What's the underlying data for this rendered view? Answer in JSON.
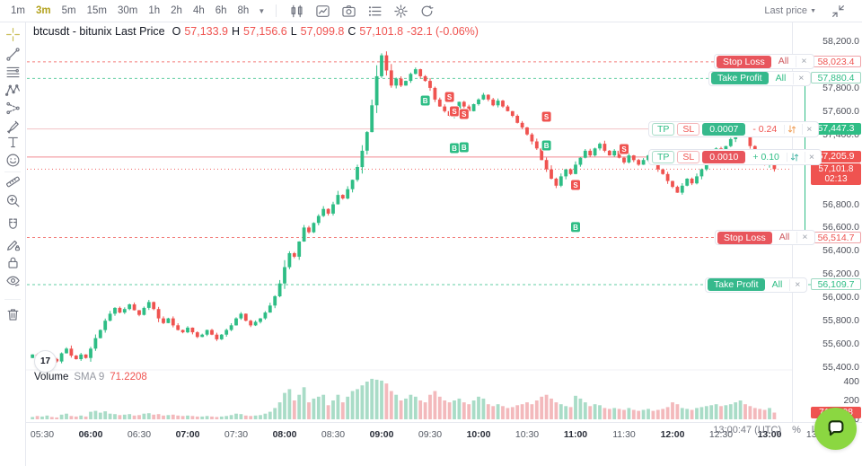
{
  "colors": {
    "up": "#2ebd85",
    "down": "#ef5350",
    "up_muted": "#a9dcc7",
    "down_muted": "#f3b9bc",
    "accent": "#b3a21e",
    "chat": "#8bd741",
    "border": "#e7e9ef"
  },
  "toolbar": {
    "timeframes": [
      "1m",
      "3m",
      "5m",
      "15m",
      "30m",
      "1h",
      "2h",
      "4h",
      "6h",
      "8h"
    ],
    "active_timeframe": "3m",
    "icons": [
      "candles",
      "indicators",
      "snapshot",
      "object-tree",
      "settings",
      "refresh"
    ],
    "last_price_selector": "Last price"
  },
  "sidebar": {
    "tools": [
      "crosshair",
      "trend-line",
      "fib-retracement",
      "xabcd-pattern",
      "forecast",
      "brush",
      "text",
      "emoji",
      "ruler",
      "zoom-in",
      "magnet",
      "edit-lock",
      "lock",
      "eye",
      "trash"
    ],
    "active_tool": "crosshair"
  },
  "legend": {
    "symbol": "btcusdt - bitunix Last Price",
    "open_label": "O",
    "open": "57,133.9",
    "high_label": "H",
    "high": "57,156.6",
    "low_label": "L",
    "low": "57,099.8",
    "close_label": "C",
    "close": "57,101.8",
    "change": "-32.1 (-0.06%)"
  },
  "volume_legend": {
    "title": "Volume",
    "ma": "SMA 9",
    "value": "71.2208"
  },
  "orders": {
    "short_stop_loss": {
      "label": "Stop Loss",
      "qty": "All",
      "close": "×",
      "price": 58023.4,
      "price_label": "58,023.4"
    },
    "long_take_profit": {
      "label": "Take Profit",
      "qty": "All",
      "close": "×",
      "price": 57880.4,
      "price_label": "57,880.4"
    },
    "long_position": {
      "tp": "TP",
      "sl": "SL",
      "qty": "0.0007",
      "pnl": "- 0.24",
      "close": "×",
      "price": 57447.3,
      "price_label": "57,447.3",
      "side": "long"
    },
    "short_position": {
      "tp": "TP",
      "sl": "SL",
      "qty": "0.0010",
      "pnl": "+ 0.10",
      "close": "×",
      "price": 57205.9,
      "price_label": "57,205.9",
      "side": "short"
    },
    "long_stop_loss": {
      "label": "Stop Loss",
      "qty": "All",
      "close": "×",
      "price": 56514.7,
      "price_label": "56,514.7"
    },
    "short_take_profit": {
      "label": "Take Profit",
      "qty": "All",
      "close": "×",
      "price": 56109.7,
      "price_label": "56,109.7"
    },
    "last_price": {
      "price": 57101.8,
      "price_label": "57,101.8",
      "countdown": "02:13"
    }
  },
  "chart_data": {
    "type": "candlestick",
    "symbol": "btcusdt",
    "exchange": "bitunix",
    "interval": "3m",
    "start_time": "05:24",
    "ylim_price": [
      55350,
      58270
    ],
    "closes": [
      55510,
      55470,
      55480,
      55500,
      55470,
      55450,
      55520,
      55560,
      55500,
      55470,
      55510,
      55480,
      55560,
      55650,
      55720,
      55800,
      55860,
      55910,
      55870,
      55900,
      55940,
      55890,
      55850,
      55910,
      55960,
      55900,
      55820,
      55780,
      55820,
      55760,
      55720,
      55700,
      55740,
      55700,
      55660,
      55680,
      55720,
      55680,
      55640,
      55680,
      55720,
      55760,
      55820,
      55860,
      55800,
      55760,
      55790,
      55820,
      55870,
      55930,
      56010,
      56120,
      56260,
      56380,
      56350,
      56480,
      56600,
      56560,
      56640,
      56700,
      56760,
      56720,
      56800,
      56880,
      56850,
      56930,
      57010,
      57120,
      57260,
      57420,
      57650,
      57900,
      58080,
      57950,
      57820,
      57880,
      57820,
      57860,
      57920,
      57960,
      57900,
      57860,
      57800,
      57700,
      57640,
      57600,
      57560,
      57620,
      57680,
      57640,
      57600,
      57660,
      57700,
      57740,
      57700,
      57650,
      57690,
      57640,
      57600,
      57560,
      57500,
      57460,
      57400,
      57340,
      57280,
      57180,
      57100,
      57020,
      56960,
      57040,
      57100,
      57060,
      57140,
      57200,
      57260,
      57220,
      57280,
      57320,
      57260,
      57220,
      57260,
      57200,
      57160,
      57220,
      57180,
      57140,
      57180,
      57220,
      57160,
      57100,
      57060,
      57000,
      56950,
      56900,
      56960,
      57020,
      56980,
      57040,
      57100,
      57160,
      57220,
      57280,
      57240,
      57300,
      57360,
      57420,
      57460,
      57380,
      57300,
      57240,
      57180,
      57140,
      57200,
      57101.8
    ],
    "volumes": [
      25,
      35,
      30,
      40,
      25,
      20,
      50,
      60,
      35,
      30,
      40,
      30,
      80,
      90,
      70,
      85,
      60,
      55,
      45,
      50,
      55,
      40,
      45,
      60,
      65,
      50,
      55,
      40,
      45,
      50,
      40,
      35,
      40,
      35,
      30,
      30,
      35,
      30,
      25,
      30,
      35,
      45,
      60,
      55,
      40,
      35,
      40,
      45,
      60,
      80,
      120,
      180,
      280,
      320,
      200,
      260,
      340,
      180,
      220,
      240,
      260,
      150,
      200,
      260,
      180,
      240,
      300,
      320,
      360,
      400,
      430,
      420,
      410,
      380,
      300,
      260,
      200,
      220,
      260,
      240,
      200,
      180,
      260,
      300,
      240,
      200,
      180,
      200,
      220,
      180,
      160,
      200,
      240,
      220,
      160,
      140,
      160,
      140,
      120,
      130,
      150,
      160,
      180,
      160,
      200,
      240,
      260,
      220,
      180,
      160,
      140,
      130,
      250,
      220,
      180,
      140,
      160,
      150,
      120,
      110,
      120,
      110,
      100,
      120,
      100,
      90,
      100,
      110,
      90,
      100,
      110,
      130,
      180,
      160,
      120,
      110,
      100,
      120,
      130,
      140,
      150,
      160,
      140,
      150,
      160,
      180,
      200,
      160,
      140,
      120,
      110,
      100,
      120,
      71
    ],
    "markers": [
      {
        "i": 81,
        "p": 57691,
        "side": "B"
      },
      {
        "i": 86,
        "p": 57722,
        "side": "S"
      },
      {
        "i": 87,
        "p": 57598,
        "side": "S"
      },
      {
        "i": 89,
        "p": 57575,
        "side": "S"
      },
      {
        "i": 87,
        "p": 57282,
        "side": "B"
      },
      {
        "i": 89,
        "p": 57290,
        "side": "B"
      },
      {
        "i": 106,
        "p": 57552,
        "side": "S"
      },
      {
        "i": 106,
        "p": 57305,
        "side": "B"
      },
      {
        "i": 112,
        "p": 56966,
        "side": "S"
      },
      {
        "i": 112,
        "p": 56604,
        "side": "B"
      },
      {
        "i": 122,
        "p": 57274,
        "side": "S"
      }
    ],
    "price_ticks": [
      {
        "v": 58200,
        "label": "58,200.0"
      },
      {
        "v": 57800,
        "label": "57,800.0"
      },
      {
        "v": 57600,
        "label": "57,600.0"
      },
      {
        "v": 57400,
        "label": "57,400.0"
      },
      {
        "v": 56800,
        "label": "56,800.0"
      },
      {
        "v": 56600,
        "label": "56,600.0"
      },
      {
        "v": 56400,
        "label": "56,400.0"
      },
      {
        "v": 56200,
        "label": "56,200.0"
      },
      {
        "v": 56000,
        "label": "56,000.0"
      },
      {
        "v": 55800,
        "label": "55,800.0"
      },
      {
        "v": 55600,
        "label": "55,600.0"
      },
      {
        "v": 55400,
        "label": "55,400.0"
      }
    ],
    "volume_ticks": [
      {
        "v": 400,
        "label": "400"
      },
      {
        "v": 200,
        "label": "200"
      },
      {
        "v": 0,
        "label": "0"
      }
    ],
    "volume_axis_value": {
      "v": 71,
      "label": "71.2208"
    },
    "time_labels": [
      {
        "label": "05:30",
        "bold": false
      },
      {
        "label": "06:00",
        "bold": true
      },
      {
        "label": "06:30",
        "bold": false
      },
      {
        "label": "07:00",
        "bold": true
      },
      {
        "label": "07:30",
        "bold": false
      },
      {
        "label": "08:00",
        "bold": true
      },
      {
        "label": "08:30",
        "bold": false
      },
      {
        "label": "09:00",
        "bold": true
      },
      {
        "label": "09:30",
        "bold": false
      },
      {
        "label": "10:00",
        "bold": true
      },
      {
        "label": "10:30",
        "bold": false
      },
      {
        "label": "11:00",
        "bold": true
      },
      {
        "label": "11:30",
        "bold": false
      },
      {
        "label": "12:00",
        "bold": true
      },
      {
        "label": "12:30",
        "bold": false
      },
      {
        "label": "13:00",
        "bold": true
      },
      {
        "label": "13:30",
        "bold": false
      }
    ]
  },
  "bottom_bar": {
    "clock": "13:00:47 (UTC)",
    "buttons": [
      "%",
      "log",
      "auto"
    ]
  },
  "tv_logo": "17"
}
